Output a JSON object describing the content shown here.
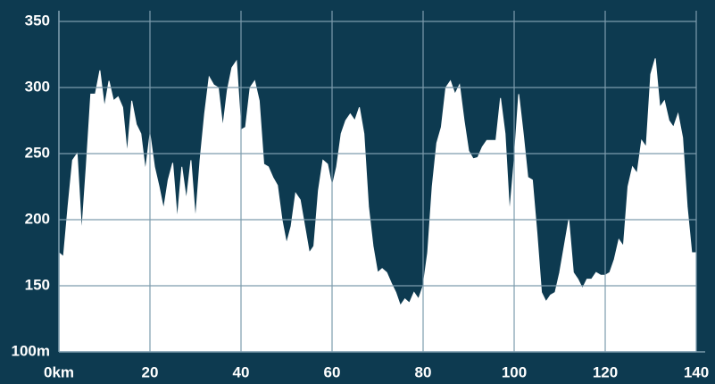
{
  "chart_data": {
    "type": "area",
    "x": [
      0,
      1,
      2,
      3,
      4,
      5,
      6,
      7,
      8,
      9,
      10,
      11,
      12,
      13,
      14,
      15,
      16,
      17,
      18,
      19,
      20,
      21,
      22,
      23,
      24,
      25,
      26,
      27,
      28,
      29,
      30,
      31,
      32,
      33,
      34,
      35,
      36,
      37,
      38,
      39,
      40,
      41,
      42,
      43,
      44,
      45,
      46,
      47,
      48,
      49,
      50,
      51,
      52,
      53,
      54,
      55,
      56,
      57,
      58,
      59,
      60,
      61,
      62,
      63,
      64,
      65,
      66,
      67,
      68,
      69,
      70,
      71,
      72,
      73,
      74,
      75,
      76,
      77,
      78,
      79,
      80,
      81,
      82,
      83,
      84,
      85,
      86,
      87,
      88,
      89,
      90,
      91,
      92,
      93,
      94,
      95,
      96,
      97,
      98,
      99,
      100,
      101,
      102,
      103,
      104,
      105,
      106,
      107,
      108,
      109,
      110,
      111,
      112,
      113,
      114,
      115,
      116,
      117,
      118,
      119,
      120,
      121,
      122,
      123,
      124,
      125,
      126,
      127,
      128,
      129,
      130,
      131,
      132,
      133,
      134,
      135,
      136,
      137,
      138,
      139,
      140
    ],
    "values": [
      175,
      172,
      210,
      245,
      250,
      190,
      240,
      295,
      295,
      313,
      285,
      305,
      290,
      293,
      285,
      250,
      290,
      272,
      265,
      237,
      265,
      240,
      225,
      208,
      230,
      243,
      200,
      240,
      215,
      245,
      200,
      245,
      280,
      308,
      302,
      300,
      270,
      298,
      315,
      320,
      268,
      270,
      300,
      305,
      290,
      242,
      240,
      232,
      226,
      200,
      182,
      195,
      220,
      215,
      195,
      175,
      180,
      222,
      245,
      242,
      225,
      240,
      265,
      275,
      280,
      275,
      285,
      265,
      210,
      180,
      160,
      163,
      160,
      152,
      145,
      135,
      140,
      137,
      145,
      140,
      150,
      175,
      225,
      258,
      270,
      300,
      305,
      295,
      302,
      275,
      252,
      246,
      247,
      255,
      260,
      260,
      260,
      292,
      265,
      205,
      245,
      295,
      265,
      232,
      230,
      190,
      145,
      138,
      143,
      145,
      160,
      180,
      200,
      160,
      155,
      148,
      155,
      155,
      160,
      158,
      158,
      160,
      170,
      185,
      180,
      225,
      240,
      235,
      260,
      255,
      310,
      322,
      285,
      290,
      275,
      270,
      280,
      262,
      210,
      175,
      175
    ],
    "color": "#ffffff",
    "background": "#0d3a50",
    "grid_color": "#7d9cad",
    "xlim": [
      0,
      140
    ],
    "xticks": [
      {
        "value": 0,
        "label": "0km"
      },
      20,
      40,
      60,
      80,
      100,
      120,
      140
    ],
    "ylim": [
      100,
      350
    ],
    "yticks": [
      {
        "value": 100,
        "label": "100m"
      },
      150,
      200,
      250,
      300,
      350
    ],
    "grid": true
  }
}
